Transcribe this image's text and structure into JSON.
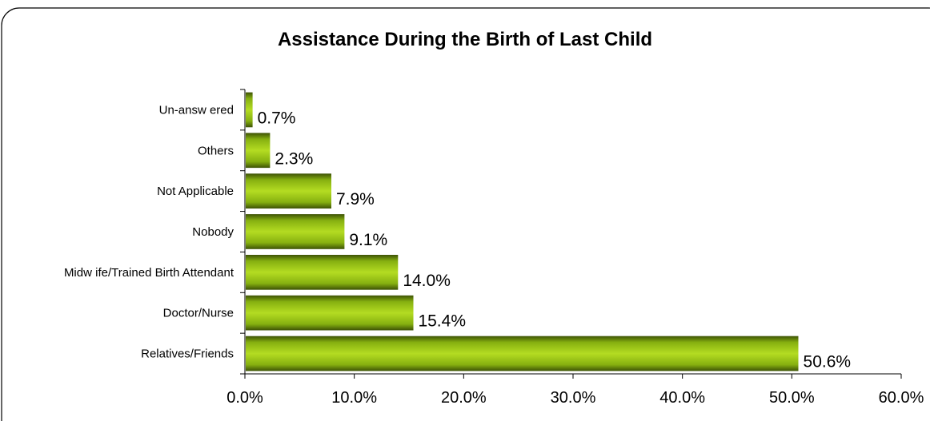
{
  "chart_data": {
    "type": "bar",
    "orientation": "horizontal",
    "title": "Assistance During the Birth of Last Child",
    "xlabel": "",
    "ylabel": "",
    "categories": [
      "Un-answ ered",
      "Others",
      "Not Applicable",
      "Nobody",
      "Midw ife/Trained Birth Attendant",
      "Doctor/Nurse",
      "Relatives/Friends"
    ],
    "values": [
      0.7,
      2.3,
      7.9,
      9.1,
      14.0,
      15.4,
      50.6
    ],
    "value_labels": [
      "0.7%",
      "2.3%",
      "7.9%",
      "9.1%",
      "14.0%",
      "15.4%",
      "50.6%"
    ],
    "xlim": [
      0,
      60
    ],
    "x_ticks": [
      0,
      10,
      20,
      30,
      40,
      50,
      60
    ],
    "x_tick_labels": [
      "0.0%",
      "10.0%",
      "20.0%",
      "30.0%",
      "40.0%",
      "50.0%",
      "60.0%"
    ],
    "grid": false,
    "legend": "none",
    "colors": {
      "bar_light": "#a6d214",
      "bar_mid": "#86b010",
      "bar_dark": "#3d5205",
      "axis": "#000000",
      "frame": "#000000"
    }
  }
}
